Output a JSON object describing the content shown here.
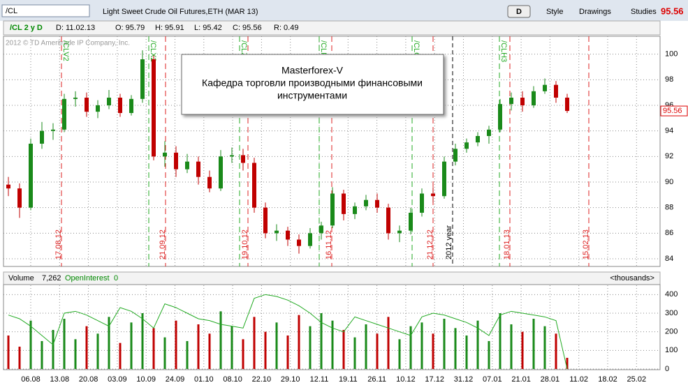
{
  "toolbar": {
    "symbol": "/CL",
    "description": "Light Sweet Crude Oil Futures,ETH (MAR 13)",
    "period_button": "D",
    "style": "Style",
    "drawings": "Drawings",
    "studies": "Studies",
    "last_price": "95.56"
  },
  "info_bar": {
    "chart_id": "/CL 2 y D",
    "date": "D: 11.02.13",
    "open": "O: 95.79",
    "high": "H: 95.91",
    "low": "L: 95.42",
    "close": "C: 95.56",
    "range": "R: 0.49"
  },
  "watermark": "2012 © TD Ameritrade IP Company, Inc.",
  "annotation": {
    "line1": "Masterforex-V",
    "line2": "Кафедра торговли производными финансовыми",
    "line3": "инструментами"
  },
  "chart_data": {
    "type": "candlestick",
    "candles": [
      [
        89.8,
        90.4,
        88.9,
        89.5
      ],
      [
        89.5,
        89.9,
        87.2,
        88.0
      ],
      [
        88.0,
        93.4,
        87.8,
        93.0
      ],
      [
        93.0,
        94.7,
        92.6,
        94.0
      ],
      [
        94.0,
        94.6,
        93.3,
        94.1
      ],
      [
        94.1,
        96.9,
        93.9,
        96.5
      ],
      [
        96.5,
        97.1,
        95.9,
        96.6
      ],
      [
        96.6,
        97.0,
        95.1,
        95.5
      ],
      [
        95.5,
        96.4,
        95.0,
        96.0
      ],
      [
        96.0,
        97.2,
        95.7,
        96.6
      ],
      [
        96.6,
        96.9,
        95.1,
        95.4
      ],
      [
        95.4,
        96.8,
        95.2,
        96.5
      ],
      [
        96.5,
        100.3,
        96.2,
        99.6
      ],
      [
        99.6,
        99.9,
        91.7,
        92.0
      ],
      [
        92.0,
        93.2,
        91.2,
        92.3
      ],
      [
        92.3,
        92.8,
        90.4,
        91.0
      ],
      [
        91.0,
        92.2,
        90.7,
        91.6
      ],
      [
        91.6,
        92.0,
        89.8,
        90.4
      ],
      [
        90.4,
        90.9,
        89.2,
        89.5
      ],
      [
        89.5,
        92.5,
        89.3,
        92.0
      ],
      [
        92.0,
        92.7,
        91.5,
        92.1
      ],
      [
        92.1,
        92.6,
        90.9,
        91.5
      ],
      [
        91.5,
        91.9,
        87.6,
        88.0
      ],
      [
        88.0,
        88.4,
        85.6,
        86.0
      ],
      [
        86.0,
        86.7,
        85.4,
        86.2
      ],
      [
        86.2,
        86.5,
        85.0,
        85.5
      ],
      [
        85.5,
        85.9,
        84.4,
        85.0
      ],
      [
        85.0,
        86.4,
        84.8,
        86.0
      ],
      [
        86.0,
        86.9,
        85.5,
        86.6
      ],
      [
        86.6,
        89.6,
        86.4,
        89.1
      ],
      [
        89.1,
        89.4,
        87.0,
        87.5
      ],
      [
        87.5,
        88.4,
        87.1,
        88.1
      ],
      [
        88.1,
        89.0,
        87.8,
        88.6
      ],
      [
        88.6,
        89.1,
        87.6,
        88.0
      ],
      [
        88.0,
        88.3,
        85.5,
        86.0
      ],
      [
        86.0,
        86.6,
        85.3,
        86.2
      ],
      [
        86.2,
        88.0,
        85.9,
        87.6
      ],
      [
        87.6,
        89.5,
        87.3,
        89.1
      ],
      [
        89.1,
        89.6,
        88.4,
        88.9
      ],
      [
        88.9,
        92.0,
        88.7,
        91.6
      ],
      [
        91.6,
        93.0,
        91.3,
        92.6
      ],
      [
        92.6,
        93.4,
        92.3,
        93.1
      ],
      [
        93.1,
        93.9,
        92.8,
        93.6
      ],
      [
        93.6,
        94.4,
        93.0,
        94.1
      ],
      [
        94.1,
        96.5,
        93.9,
        96.1
      ],
      [
        96.1,
        97.0,
        95.6,
        96.6
      ],
      [
        96.6,
        97.1,
        95.5,
        96.0
      ],
      [
        96.0,
        97.5,
        95.8,
        97.1
      ],
      [
        97.1,
        98.1,
        96.9,
        97.6
      ],
      [
        97.6,
        97.9,
        96.2,
        96.6
      ],
      [
        96.6,
        96.9,
        95.4,
        95.56
      ]
    ],
    "ylim": [
      83.4,
      101.4
    ],
    "yticks": [
      84,
      86,
      88,
      90,
      92,
      94,
      96,
      98,
      100
    ],
    "x_labels": [
      "06.08",
      "13.08",
      "20.08",
      "03.09",
      "10.09",
      "24.09",
      "01.10",
      "08.10",
      "22.10",
      "29.10",
      "12.11",
      "19.11",
      "26.11",
      "10.12",
      "17.12",
      "31.12",
      "07.01",
      "21.01",
      "28.01",
      "11.02",
      "18.02",
      "25.02"
    ],
    "red_markers": [
      "17.08.12",
      "21.09.12",
      "19.10.12",
      "16.11.12",
      "21.12.12",
      "18.01.13",
      "15.02.13"
    ],
    "green_markers": [
      "/CLV2",
      "/CLX2",
      "/CLZ2",
      "/CLF3",
      "/CLG3",
      "/CLH3"
    ],
    "year_marker": "2012 year",
    "grid": true
  },
  "volume_chart": {
    "type": "bar",
    "title": "Volume",
    "last_volume": "7,262",
    "oi_name": "OpenInterest",
    "oi_last": "0",
    "units": "<thousands>",
    "volume": [
      180,
      120,
      260,
      150,
      210,
      270,
      160,
      230,
      190,
      280,
      140,
      250,
      300,
      220,
      170,
      260,
      150,
      240,
      190,
      310,
      230,
      160,
      280,
      200,
      250,
      180,
      290,
      230,
      300,
      260,
      210,
      170,
      240,
      190,
      280,
      160,
      230,
      250,
      190,
      270,
      220,
      180,
      260,
      150,
      300,
      240,
      200,
      270,
      230,
      190,
      60
    ],
    "open_interest": [
      290,
      270,
      230,
      180,
      130,
      300,
      310,
      290,
      260,
      230,
      330,
      310,
      270,
      220,
      350,
      330,
      300,
      270,
      260,
      240,
      230,
      220,
      380,
      400,
      390,
      370,
      340,
      300,
      250,
      220,
      200,
      280,
      260,
      240,
      220,
      200,
      180,
      280,
      300,
      290,
      270,
      250,
      220,
      180,
      290,
      310,
      300,
      290,
      280,
      260,
      0
    ],
    "ylim": [
      0,
      450
    ],
    "yticks": [
      0,
      100,
      200,
      300,
      400
    ]
  }
}
